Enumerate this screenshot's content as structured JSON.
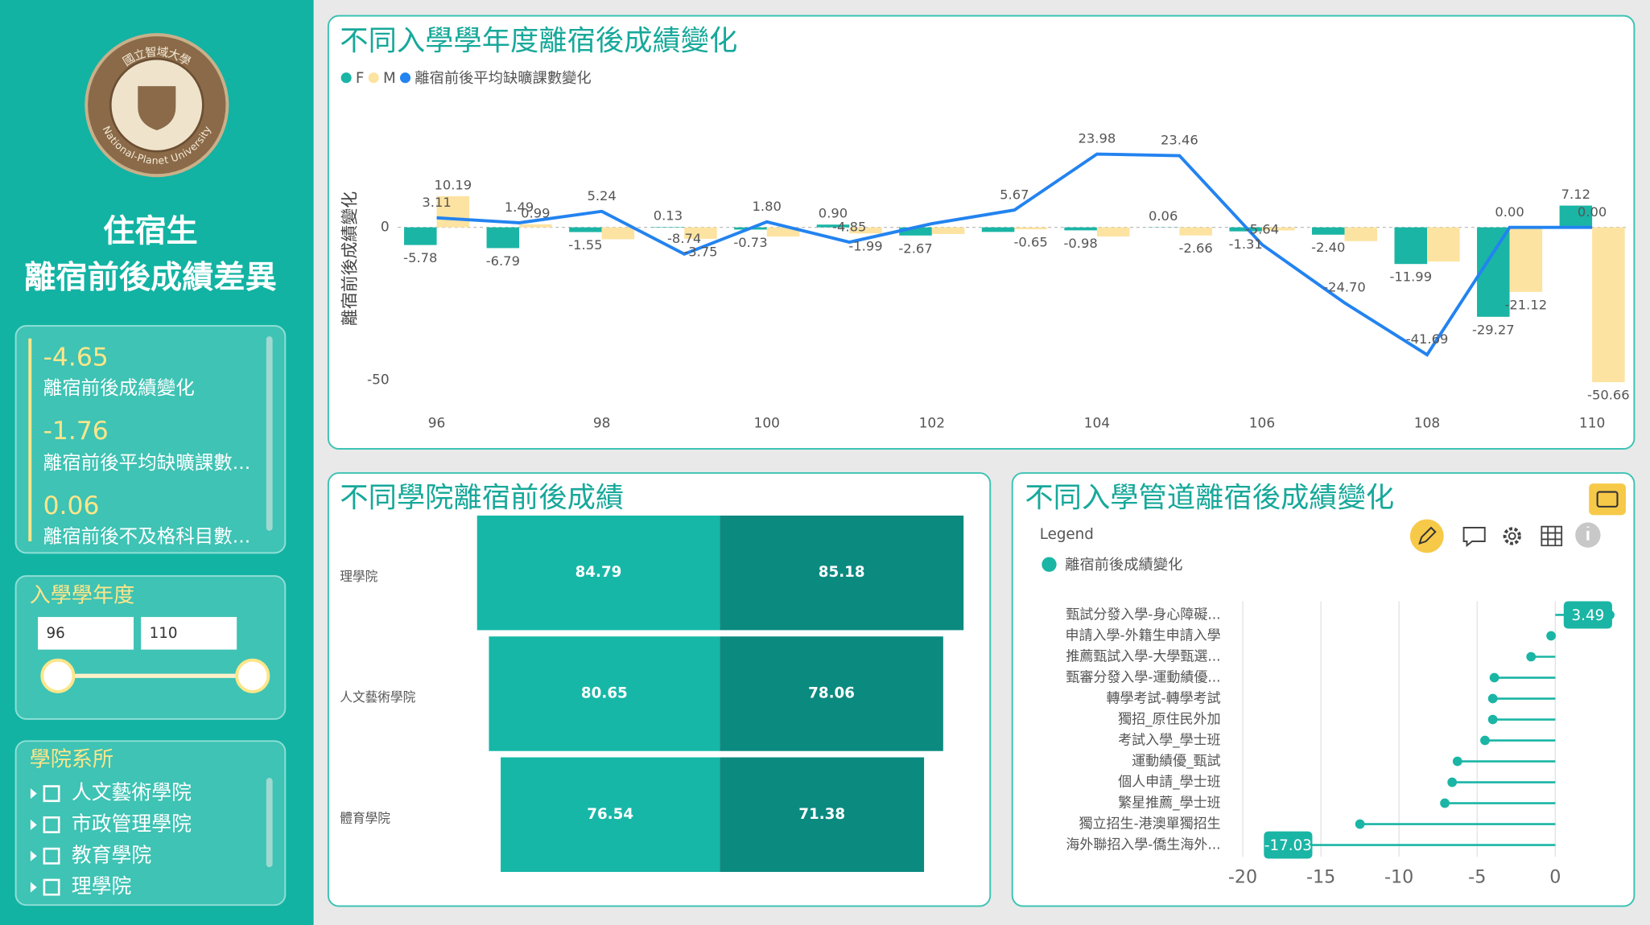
{
  "sidebar": {
    "logo": {
      "top_text": "國立智域大學",
      "bottom_text": "National-Planet University"
    },
    "title": [
      "住宿生",
      "離宿前後成績差異"
    ],
    "kpis": [
      {
        "value": -4.65,
        "label": "離宿前後成績變化"
      },
      {
        "value": -1.76,
        "label": "離宿前後平均缺曠課數..."
      },
      {
        "value": 0.06,
        "label": "離宿前後不及格科目數..."
      }
    ],
    "year_slicer": {
      "title": "入學學年度",
      "from": 96,
      "to": 110
    },
    "college_slicer": {
      "title": "學院系所",
      "items": [
        "人文藝術學院",
        "市政管理學院",
        "教育學院",
        "理學院"
      ]
    }
  },
  "chart_data": [
    {
      "type": "combo",
      "title": "不同入學學年度離宿後成績變化",
      "y_label": "離宿前後成績變化",
      "x": [
        96,
        97,
        98,
        99,
        100,
        101,
        102,
        103,
        104,
        105,
        106,
        107,
        108,
        109,
        110
      ],
      "xticks": [
        96,
        98,
        100,
        102,
        104,
        106,
        108,
        110
      ],
      "ylim": [
        -57,
        40
      ],
      "yticks": [
        -50,
        0
      ],
      "series": [
        {
          "name": "F",
          "type": "bar",
          "color": "#1ab5a5",
          "values": [
            -5.78,
            -6.79,
            -1.55,
            0.13,
            -0.73,
            0.9,
            -2.67,
            -1.5,
            -0.98,
            0.06,
            -1.31,
            -2.4,
            -11.99,
            -29.27,
            7.12
          ],
          "value_labels": [
            "-5.78",
            "-6.79",
            "-1.55",
            "0.13",
            "-0.73",
            "0.90",
            "-2.67",
            null,
            "-0.98",
            "0.06",
            "-1.31",
            "-2.40",
            "-11.99",
            "-29.27",
            "7.12"
          ]
        },
        {
          "name": "M",
          "type": "bar",
          "color": "#fde3a1",
          "values": [
            10.19,
            0.99,
            -3.9,
            -3.75,
            -3.0,
            -1.99,
            -2.2,
            -0.65,
            -3.0,
            -2.66,
            -1.0,
            -4.5,
            -11.2,
            -21.12,
            -50.66
          ],
          "value_labels": [
            "10.19",
            "0.99",
            null,
            "-3.75",
            null,
            "-1.99",
            null,
            "-0.65",
            null,
            "-2.66",
            null,
            null,
            null,
            "-21.12",
            "-50.66"
          ]
        },
        {
          "name": "離宿前後平均缺曠課數變化",
          "type": "line",
          "color": "#2383f0",
          "values": [
            3.11,
            1.49,
            5.24,
            -8.74,
            1.8,
            -4.85,
            1.2,
            5.67,
            23.98,
            23.46,
            -5.64,
            -24.7,
            -41.69,
            0.0,
            0.0
          ],
          "value_labels": [
            "3.11",
            "1.49",
            "5.24",
            "-8.74",
            "1.80",
            "-4.85",
            null,
            "5.67",
            "23.98",
            "23.46",
            "-5.64",
            "-24.70",
            "-41.69",
            "0.00",
            "0.00"
          ]
        }
      ]
    },
    {
      "type": "butterfly",
      "title": "不同學院離宿前後成績",
      "categories": [
        "理學院",
        "人文藝術學院",
        "體育學院"
      ],
      "series": [
        {
          "color": "#16b7a7",
          "values": [
            84.79,
            80.65,
            76.54
          ]
        },
        {
          "color": "#0b8a80",
          "values": [
            85.18,
            78.06,
            71.38
          ]
        }
      ]
    },
    {
      "type": "lollipop",
      "title": "不同入學管道離宿後成績變化",
      "legend_title": "Legend",
      "categories": [
        "甄試分發入學-身心障礙...",
        "申請入學-外籍生申請入學",
        "推薦甄試入學-大學甄選...",
        "甄審分發入學-運動績優...",
        "轉學考試-轉學考試",
        "獨招_原住民外加",
        "考試入學_學士班",
        "運動績優_甄試",
        "個人申請_學士班",
        "繁星推薦_學士班",
        "獨立招生-港澳單獨招生",
        "海外聯招入學-僑生海外..."
      ],
      "xlim": [
        -20,
        4
      ],
      "xticks": [
        -20,
        -15,
        -10,
        -5,
        0
      ],
      "grid": true,
      "series": [
        {
          "name": "離宿前後成績變化",
          "color": "#1ab5a5",
          "values": [
            3.49,
            -0.27,
            -1.55,
            -3.9,
            -4.0,
            -4.0,
            -4.5,
            -6.26,
            -6.6,
            -7.07,
            -12.5,
            -17.03
          ],
          "value_labels": [
            "3.49",
            null,
            null,
            null,
            null,
            null,
            null,
            null,
            null,
            null,
            null,
            "-17.03"
          ]
        }
      ]
    }
  ]
}
